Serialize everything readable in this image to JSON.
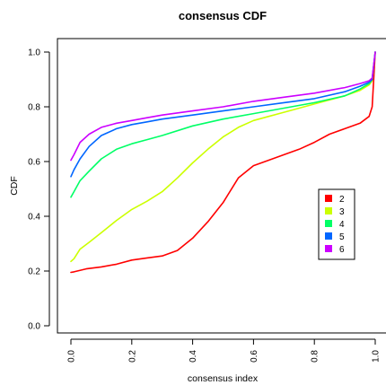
{
  "chart_data": {
    "type": "line",
    "title": "consensus CDF",
    "xlabel": "consensus index",
    "ylabel": "CDF",
    "xlim": [
      -0.04,
      1.04
    ],
    "ylim": [
      -0.04,
      1.04
    ],
    "xticks": [
      0.0,
      0.2,
      0.4,
      0.6,
      0.8,
      1.0
    ],
    "xtick_labels": [
      "0.0",
      "0.2",
      "0.4",
      "0.6",
      "0.8",
      "1.0"
    ],
    "yticks": [
      0.0,
      0.2,
      0.4,
      0.6,
      0.8,
      1.0
    ],
    "ytick_labels": [
      "0.0",
      "0.2",
      "0.4",
      "0.6",
      "0.8",
      "1.0"
    ],
    "grid": false,
    "legend_position": "right",
    "series": [
      {
        "name": "2",
        "color": "#ff0000",
        "x": [
          0.0,
          0.01,
          0.05,
          0.1,
          0.15,
          0.2,
          0.25,
          0.3,
          0.35,
          0.4,
          0.45,
          0.5,
          0.55,
          0.6,
          0.65,
          0.7,
          0.75,
          0.8,
          0.85,
          0.9,
          0.95,
          0.98,
          0.99,
          1.0
        ],
        "values": [
          0.195,
          0.197,
          0.208,
          0.215,
          0.225,
          0.24,
          0.248,
          0.255,
          0.275,
          0.32,
          0.38,
          0.45,
          0.54,
          0.585,
          0.605,
          0.625,
          0.645,
          0.67,
          0.7,
          0.72,
          0.74,
          0.765,
          0.8,
          1.0
        ]
      },
      {
        "name": "3",
        "color": "#ccff00",
        "x": [
          0.0,
          0.01,
          0.03,
          0.06,
          0.1,
          0.15,
          0.2,
          0.25,
          0.3,
          0.35,
          0.4,
          0.45,
          0.5,
          0.55,
          0.6,
          0.65,
          0.7,
          0.75,
          0.8,
          0.85,
          0.9,
          0.95,
          0.98,
          0.99,
          1.0
        ],
        "values": [
          0.235,
          0.245,
          0.28,
          0.305,
          0.34,
          0.385,
          0.425,
          0.455,
          0.49,
          0.54,
          0.595,
          0.645,
          0.69,
          0.725,
          0.75,
          0.765,
          0.78,
          0.795,
          0.81,
          0.825,
          0.84,
          0.86,
          0.88,
          0.895,
          1.0
        ]
      },
      {
        "name": "4",
        "color": "#00ff66",
        "x": [
          0.0,
          0.01,
          0.03,
          0.06,
          0.1,
          0.15,
          0.2,
          0.25,
          0.3,
          0.4,
          0.5,
          0.6,
          0.7,
          0.8,
          0.9,
          0.95,
          0.98,
          0.99,
          1.0
        ],
        "values": [
          0.47,
          0.49,
          0.53,
          0.565,
          0.61,
          0.645,
          0.665,
          0.68,
          0.695,
          0.73,
          0.755,
          0.775,
          0.795,
          0.815,
          0.84,
          0.865,
          0.885,
          0.9,
          1.0
        ]
      },
      {
        "name": "5",
        "color": "#0066ff",
        "x": [
          0.0,
          0.01,
          0.03,
          0.06,
          0.1,
          0.15,
          0.2,
          0.25,
          0.3,
          0.4,
          0.5,
          0.6,
          0.7,
          0.8,
          0.9,
          0.95,
          0.98,
          0.99,
          1.0
        ],
        "values": [
          0.545,
          0.57,
          0.61,
          0.655,
          0.695,
          0.72,
          0.735,
          0.745,
          0.755,
          0.77,
          0.785,
          0.8,
          0.815,
          0.83,
          0.855,
          0.875,
          0.89,
          0.9,
          1.0
        ]
      },
      {
        "name": "6",
        "color": "#cc00ff",
        "x": [
          0.0,
          0.01,
          0.03,
          0.06,
          0.1,
          0.15,
          0.2,
          0.25,
          0.3,
          0.4,
          0.5,
          0.6,
          0.7,
          0.8,
          0.9,
          0.95,
          0.98,
          0.99,
          1.0
        ],
        "values": [
          0.605,
          0.625,
          0.67,
          0.7,
          0.725,
          0.74,
          0.75,
          0.76,
          0.77,
          0.785,
          0.8,
          0.82,
          0.835,
          0.85,
          0.87,
          0.885,
          0.895,
          0.905,
          1.0
        ]
      }
    ]
  }
}
